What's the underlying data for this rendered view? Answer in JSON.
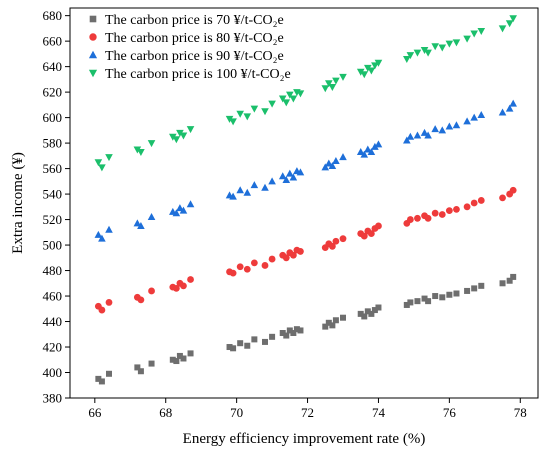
{
  "chart_data": {
    "type": "scatter",
    "title": "",
    "xlabel": "Energy efficiency improvement rate (%)",
    "ylabel": "Extra income (¥)",
    "xlim": [
      65.3,
      78.5
    ],
    "ylim": [
      380,
      686
    ],
    "xticks": [
      66,
      68,
      70,
      72,
      74,
      76,
      78
    ],
    "yticks": [
      380,
      400,
      420,
      440,
      460,
      480,
      500,
      520,
      540,
      560,
      580,
      600,
      620,
      640,
      660,
      680
    ],
    "legend_position": "top-left",
    "grid": false,
    "series": [
      {
        "name": "The carbon price is 70 ¥/t-CO₂e",
        "color": "#6e6e6e",
        "marker": "square",
        "points": [
          [
            66.1,
            395
          ],
          [
            66.2,
            393
          ],
          [
            66.4,
            399
          ],
          [
            67.2,
            404
          ],
          [
            67.3,
            401
          ],
          [
            67.6,
            407
          ],
          [
            68.2,
            410
          ],
          [
            68.3,
            409
          ],
          [
            68.4,
            413
          ],
          [
            68.5,
            411
          ],
          [
            68.7,
            415
          ],
          [
            69.8,
            420
          ],
          [
            69.9,
            419
          ],
          [
            70.1,
            423
          ],
          [
            70.3,
            421
          ],
          [
            70.5,
            426
          ],
          [
            70.8,
            424
          ],
          [
            71.0,
            428
          ],
          [
            71.3,
            431
          ],
          [
            71.4,
            429
          ],
          [
            71.5,
            433
          ],
          [
            71.6,
            431
          ],
          [
            71.7,
            434
          ],
          [
            71.8,
            433
          ],
          [
            72.5,
            436
          ],
          [
            72.6,
            439
          ],
          [
            72.7,
            437
          ],
          [
            72.8,
            441
          ],
          [
            73.0,
            443
          ],
          [
            73.5,
            446
          ],
          [
            73.6,
            444
          ],
          [
            73.7,
            448
          ],
          [
            73.8,
            446
          ],
          [
            73.9,
            449
          ],
          [
            74.0,
            451
          ],
          [
            74.8,
            453
          ],
          [
            74.9,
            455
          ],
          [
            75.1,
            456
          ],
          [
            75.3,
            458
          ],
          [
            75.4,
            456
          ],
          [
            75.6,
            460
          ],
          [
            75.8,
            459
          ],
          [
            76.0,
            461
          ],
          [
            76.2,
            462
          ],
          [
            76.5,
            464
          ],
          [
            76.7,
            466
          ],
          [
            76.9,
            468
          ],
          [
            77.5,
            470
          ],
          [
            77.7,
            472
          ],
          [
            77.8,
            475
          ]
        ]
      },
      {
        "name": "The carbon price is 80 ¥/t-CO₂e",
        "color": "#ee3b3b",
        "marker": "circle",
        "points": [
          [
            66.1,
            452
          ],
          [
            66.2,
            449
          ],
          [
            66.4,
            455
          ],
          [
            67.2,
            459
          ],
          [
            67.3,
            457
          ],
          [
            67.6,
            464
          ],
          [
            68.2,
            467
          ],
          [
            68.3,
            466
          ],
          [
            68.4,
            470
          ],
          [
            68.5,
            468
          ],
          [
            68.7,
            473
          ],
          [
            69.8,
            479
          ],
          [
            69.9,
            478
          ],
          [
            70.1,
            483
          ],
          [
            70.3,
            481
          ],
          [
            70.5,
            486
          ],
          [
            70.8,
            484
          ],
          [
            71.0,
            489
          ],
          [
            71.3,
            492
          ],
          [
            71.4,
            490
          ],
          [
            71.5,
            494
          ],
          [
            71.6,
            492
          ],
          [
            71.7,
            496
          ],
          [
            71.8,
            495
          ],
          [
            72.5,
            498
          ],
          [
            72.6,
            501
          ],
          [
            72.7,
            499
          ],
          [
            72.8,
            503
          ],
          [
            73.0,
            505
          ],
          [
            73.5,
            509
          ],
          [
            73.6,
            507
          ],
          [
            73.7,
            511
          ],
          [
            73.8,
            509
          ],
          [
            73.9,
            513
          ],
          [
            74.0,
            515
          ],
          [
            74.8,
            517
          ],
          [
            74.9,
            520
          ],
          [
            75.1,
            521
          ],
          [
            75.3,
            523
          ],
          [
            75.4,
            521
          ],
          [
            75.6,
            525
          ],
          [
            75.8,
            524
          ],
          [
            76.0,
            527
          ],
          [
            76.2,
            528
          ],
          [
            76.5,
            530
          ],
          [
            76.7,
            533
          ],
          [
            76.9,
            535
          ],
          [
            77.5,
            537
          ],
          [
            77.7,
            540
          ],
          [
            77.8,
            543
          ]
        ]
      },
      {
        "name": "The carbon price is 90 ¥/t-CO₂e",
        "color": "#1e6fd9",
        "marker": "triangle-up",
        "points": [
          [
            66.1,
            508
          ],
          [
            66.2,
            505
          ],
          [
            66.4,
            512
          ],
          [
            67.2,
            517
          ],
          [
            67.3,
            515
          ],
          [
            67.6,
            522
          ],
          [
            68.2,
            526
          ],
          [
            68.3,
            525
          ],
          [
            68.4,
            529
          ],
          [
            68.5,
            527
          ],
          [
            68.7,
            532
          ],
          [
            69.8,
            539
          ],
          [
            69.9,
            538
          ],
          [
            70.1,
            543
          ],
          [
            70.3,
            541
          ],
          [
            70.5,
            547
          ],
          [
            70.8,
            545
          ],
          [
            71.0,
            550
          ],
          [
            71.3,
            554
          ],
          [
            71.4,
            551
          ],
          [
            71.5,
            556
          ],
          [
            71.6,
            553
          ],
          [
            71.7,
            558
          ],
          [
            71.8,
            557
          ],
          [
            72.5,
            561
          ],
          [
            72.6,
            564
          ],
          [
            72.7,
            562
          ],
          [
            72.8,
            566
          ],
          [
            73.0,
            569
          ],
          [
            73.5,
            573
          ],
          [
            73.6,
            571
          ],
          [
            73.7,
            575
          ],
          [
            73.8,
            573
          ],
          [
            73.9,
            577
          ],
          [
            74.0,
            579
          ],
          [
            74.8,
            582
          ],
          [
            74.9,
            585
          ],
          [
            75.1,
            586
          ],
          [
            75.3,
            588
          ],
          [
            75.4,
            586
          ],
          [
            75.6,
            591
          ],
          [
            75.8,
            590
          ],
          [
            76.0,
            593
          ],
          [
            76.2,
            594
          ],
          [
            76.5,
            597
          ],
          [
            76.7,
            600
          ],
          [
            76.9,
            602
          ],
          [
            77.5,
            604
          ],
          [
            77.7,
            607
          ],
          [
            77.8,
            611
          ]
        ]
      },
      {
        "name": "The carbon price is 100 ¥/t-CO₂e",
        "color": "#1bbf6b",
        "marker": "triangle-down",
        "points": [
          [
            66.1,
            565
          ],
          [
            66.2,
            561
          ],
          [
            66.4,
            569
          ],
          [
            67.2,
            575
          ],
          [
            67.3,
            573
          ],
          [
            67.6,
            580
          ],
          [
            68.2,
            585
          ],
          [
            68.3,
            583
          ],
          [
            68.4,
            588
          ],
          [
            68.5,
            586
          ],
          [
            68.7,
            591
          ],
          [
            69.8,
            599
          ],
          [
            69.9,
            597
          ],
          [
            70.1,
            603
          ],
          [
            70.3,
            601
          ],
          [
            70.5,
            607
          ],
          [
            70.8,
            605
          ],
          [
            71.0,
            611
          ],
          [
            71.3,
            615
          ],
          [
            71.4,
            612
          ],
          [
            71.5,
            618
          ],
          [
            71.6,
            615
          ],
          [
            71.7,
            620
          ],
          [
            71.8,
            619
          ],
          [
            72.5,
            623
          ],
          [
            72.6,
            627
          ],
          [
            72.7,
            624
          ],
          [
            72.8,
            629
          ],
          [
            73.0,
            632
          ],
          [
            73.5,
            636
          ],
          [
            73.6,
            634
          ],
          [
            73.7,
            639
          ],
          [
            73.8,
            637
          ],
          [
            73.9,
            641
          ],
          [
            74.0,
            643
          ],
          [
            74.8,
            646
          ],
          [
            74.9,
            649
          ],
          [
            75.1,
            651
          ],
          [
            75.3,
            653
          ],
          [
            75.4,
            651
          ],
          [
            75.6,
            656
          ],
          [
            75.8,
            655
          ],
          [
            76.0,
            658
          ],
          [
            76.2,
            659
          ],
          [
            76.5,
            662
          ],
          [
            76.7,
            666
          ],
          [
            76.9,
            668
          ],
          [
            77.5,
            670
          ],
          [
            77.7,
            674
          ],
          [
            77.8,
            678
          ]
        ]
      }
    ]
  }
}
